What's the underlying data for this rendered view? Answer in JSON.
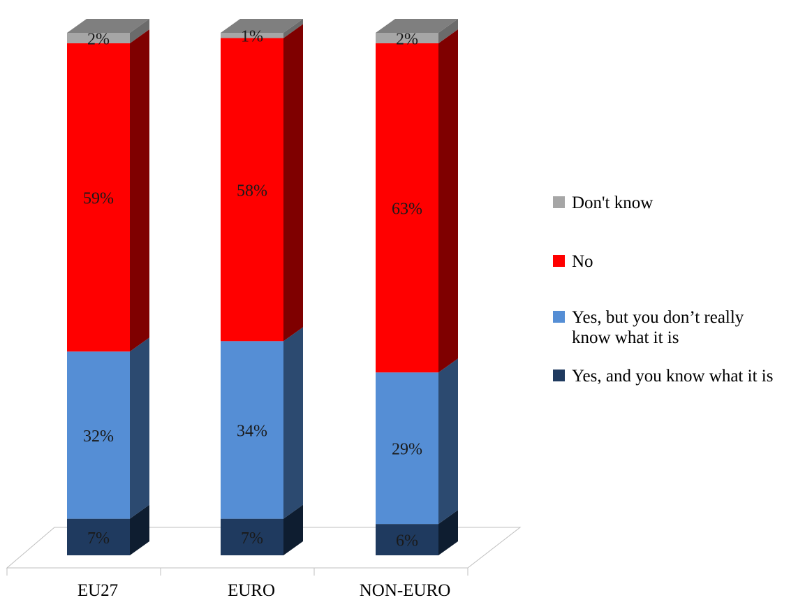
{
  "chart_data": {
    "type": "bar",
    "stacked": true,
    "three_d": true,
    "categories": [
      "EU27",
      "EURO",
      "NON-EURO"
    ],
    "series": [
      {
        "name": "Yes, and you know what it is",
        "values": [
          7,
          7,
          6
        ],
        "labels": [
          "7%",
          "7%",
          "6%"
        ],
        "color": "#1f3a5f",
        "side_color": "#0e1d30"
      },
      {
        "name": "Yes, but you don’t really know what it is",
        "values": [
          32,
          34,
          29
        ],
        "labels": [
          "32%",
          "34%",
          "29%"
        ],
        "color": "#558ed5",
        "side_color": "#2c4a70"
      },
      {
        "name": "No",
        "values": [
          59,
          58,
          63
        ],
        "labels": [
          "59%",
          "58%",
          "63%"
        ],
        "color": "#ff0000",
        "side_color": "#7f0000"
      },
      {
        "name": "Don't know",
        "values": [
          2,
          1,
          2
        ],
        "labels": [
          "2%",
          "1%",
          "2%"
        ],
        "color": "#a6a6a6",
        "side_color": "#6b6b6b"
      }
    ],
    "legend_order": [
      3,
      2,
      1,
      0
    ],
    "legend_position": "right",
    "ylim": [
      0,
      100
    ],
    "grid": false
  }
}
